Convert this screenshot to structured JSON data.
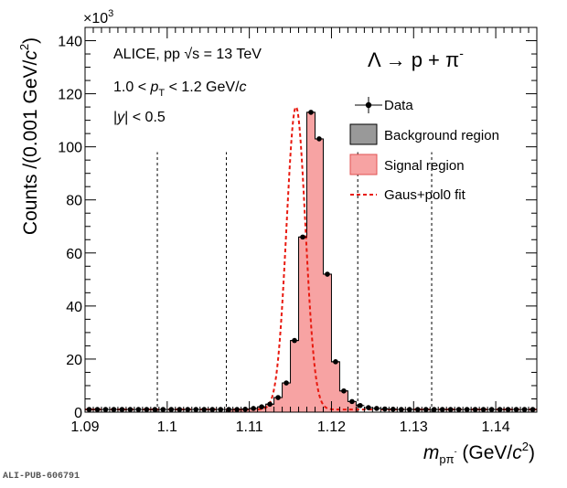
{
  "chart_data": {
    "type": "bar",
    "xlabel_var": "m",
    "xlabel_sub": "pπ",
    "xlabel_sub_sup": "-",
    "xlabel_unit_pre": "(GeV/",
    "xlabel_unit_c": "c",
    "xlabel_unit_post": ")",
    "ylabel_pre": "Counts /(0.001 GeV/",
    "ylabel_c": "c",
    "ylabel_post": ")",
    "y_exponent_base": "×10",
    "y_exponent_power": "3",
    "xlim": [
      1.09,
      1.145
    ],
    "ylim": [
      0,
      145000
    ],
    "x_ticks": [
      {
        "value": 1.09,
        "label": "1.09"
      },
      {
        "value": 1.1,
        "label": "1.1"
      },
      {
        "value": 1.11,
        "label": "1.11"
      },
      {
        "value": 1.12,
        "label": "1.12"
      },
      {
        "value": 1.13,
        "label": "1.13"
      },
      {
        "value": 1.14,
        "label": "1.14"
      }
    ],
    "y_ticks": [
      {
        "value": 0,
        "label": "0"
      },
      {
        "value": 20000,
        "label": "20"
      },
      {
        "value": 40000,
        "label": "40"
      },
      {
        "value": 60000,
        "label": "60"
      },
      {
        "value": 80000,
        "label": "80"
      },
      {
        "value": 100000,
        "label": "100"
      },
      {
        "value": 120000,
        "label": "120"
      },
      {
        "value": 140000,
        "label": "140"
      }
    ],
    "bin_width": 0.001,
    "bin_centers": [
      1.0905,
      1.0915,
      1.0925,
      1.0935,
      1.0945,
      1.0955,
      1.0965,
      1.0975,
      1.0985,
      1.0995,
      1.1005,
      1.1015,
      1.1025,
      1.1035,
      1.1045,
      1.1055,
      1.1065,
      1.1075,
      1.1085,
      1.1095,
      1.1105,
      1.1115,
      1.1125,
      1.1135,
      1.1145,
      1.1155,
      1.1165,
      1.1175,
      1.1185,
      1.1195,
      1.1205,
      1.1215,
      1.1225,
      1.1235,
      1.1245,
      1.1255,
      1.1265,
      1.1275,
      1.1285,
      1.1295,
      1.1305,
      1.1315,
      1.1325,
      1.1335,
      1.1345,
      1.1355,
      1.1365,
      1.1375,
      1.1385,
      1.1395,
      1.1405,
      1.1415,
      1.1425,
      1.1435,
      1.1445
    ],
    "counts": [
      1000,
      1000,
      1000,
      1000,
      1000,
      1000,
      1000,
      1000,
      1000,
      1000,
      1000,
      1000,
      1000,
      1000,
      1000,
      1000,
      1000,
      1000,
      1000,
      1100,
      1400,
      2000,
      3000,
      5500,
      11000,
      27000,
      66000,
      113000,
      103000,
      52000,
      19000,
      8000,
      4000,
      2500,
      1700,
      1400,
      1200,
      1100,
      1000,
      1000,
      1000,
      1000,
      1000,
      1000,
      1000,
      1000,
      1000,
      1000,
      1000,
      1000,
      1000,
      1000,
      1000,
      1000,
      1000
    ],
    "background_regions": [
      [
        1.0988,
        1.1072
      ],
      [
        1.1232,
        1.1322
      ]
    ],
    "signal_region": [
      1.1072,
      1.1232
    ],
    "fit": {
      "type": "Gaus+pol0",
      "mean": 1.11568,
      "sigma": 0.00115,
      "amplitude": 114000,
      "constant": 1000
    },
    "annotations": {
      "line1": "ALICE, pp √s = 13 TeV",
      "line2_pre": "1.0 < ",
      "line2_var": "p",
      "line2_sub": "T",
      "line2_post": " < 1.2 GeV/",
      "line2_c": "c",
      "line3_pre": "|",
      "line3_var": "y",
      "line3_post": "| < 0.5",
      "reaction": "Λ → p + π",
      "reaction_sup": "-"
    },
    "legend": {
      "placement": "top-right",
      "entries": [
        {
          "key": "data",
          "label": "Data"
        },
        {
          "key": "background",
          "label": "Background region"
        },
        {
          "key": "signal",
          "label": "Signal region"
        },
        {
          "key": "fit",
          "label": "Gaus+pol0 fit"
        }
      ]
    },
    "colors": {
      "data": "#000000",
      "background_fill": "#999999",
      "signal_fill": "#f7a3a3",
      "signal_edge": "#000000",
      "fit_line": "#e8190f",
      "boundary_lines": "#000000"
    }
  },
  "footer": {
    "reference": "ALI-PUB-606791"
  }
}
